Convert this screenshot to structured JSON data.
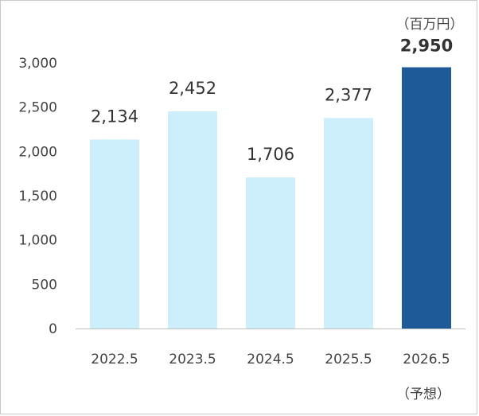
{
  "chart_data": {
    "type": "bar",
    "unit_label": "（百万円）",
    "categories": [
      "2022.5",
      "2023.5",
      "2024.5",
      "2025.5",
      "2026.5"
    ],
    "category_notes": [
      "",
      "",
      "",
      "",
      "（予想）"
    ],
    "values": [
      2134,
      2452,
      1706,
      2377,
      2950
    ],
    "value_labels": [
      "2,134",
      "2,452",
      "1,706",
      "2,377",
      "2,950"
    ],
    "highlight_index": 4,
    "ylim": [
      0,
      3000
    ],
    "yticks": [
      0,
      500,
      1000,
      1500,
      2000,
      2500,
      3000
    ],
    "ytick_labels": [
      "0",
      "500",
      "1,000",
      "1,500",
      "2,000",
      "2,500",
      "3,000"
    ],
    "grid": false,
    "colors": {
      "bar": "#cdeefb",
      "highlight_bar": "#1f5a98",
      "highlight_label": "#123f8c",
      "axis": "#bfbfbf"
    }
  }
}
